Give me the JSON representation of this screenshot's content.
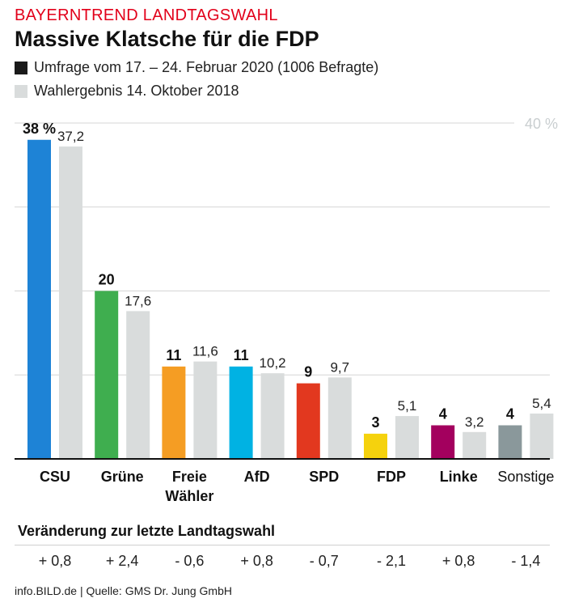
{
  "kicker": "BAYERNTREND LANDTAGSWAHL",
  "headline": "Massive Klatsche für die FDP",
  "legend": [
    {
      "label": "Umfrage vom 17. – 24. Februar 2020 (1006 Befragte)",
      "color": "#1a1a1a"
    },
    {
      "label": "Wahlergebnis 14. Oktober 2018",
      "color": "#d9dcdc"
    }
  ],
  "colors": {
    "previous": "#d9dcdc",
    "grid": "#d6d6d6",
    "axis": "#111111",
    "max_label": "#c9ced0"
  },
  "chart_data": {
    "type": "bar",
    "title": "Massive Klatsche für die FDP",
    "xlabel": "",
    "ylabel": "",
    "ylim": [
      0,
      40
    ],
    "grid": true,
    "max_label": "40 %",
    "categories": [
      "CSU",
      "Grüne",
      "Freie Wähler",
      "AfD",
      "SPD",
      "FDP",
      "Linke",
      "Sonstige"
    ],
    "category_lines": [
      [
        "CSU"
      ],
      [
        "Grüne"
      ],
      [
        "Freie",
        "Wähler"
      ],
      [
        "AfD"
      ],
      [
        "SPD"
      ],
      [
        "FDP"
      ],
      [
        "Linke"
      ],
      [
        "Sonstige"
      ]
    ],
    "category_bold": [
      true,
      true,
      true,
      true,
      true,
      true,
      true,
      false
    ],
    "series": [
      {
        "name": "Umfrage vom 17. – 24. Februar 2020 (1006 Befragte)",
        "values": [
          38,
          20,
          11,
          11,
          9,
          3,
          4,
          4
        ],
        "labels": [
          "38 %",
          "20",
          "11",
          "11",
          "9",
          "3",
          "4",
          "4"
        ],
        "colors": [
          "#1e83d6",
          "#3fae4f",
          "#f59d23",
          "#00b2e3",
          "#e2381f",
          "#f5d20d",
          "#a3005e",
          "#8a989b"
        ]
      },
      {
        "name": "Wahlergebnis 14. Oktober 2018",
        "values": [
          37.2,
          17.6,
          11.6,
          10.2,
          9.7,
          5.1,
          3.2,
          5.4
        ],
        "labels": [
          "37,2",
          "17,6",
          "11,6",
          "10,2",
          "9,7",
          "5,1",
          "3,2",
          "5,4"
        ]
      }
    ]
  },
  "change": {
    "title": "Veränderung zur letzte Landtagswahl",
    "values": [
      "+ 0,8",
      "+ 2,4",
      "- 0,6",
      "+ 0,8",
      "- 0,7",
      "- 2,1",
      "+ 0,8",
      "- 1,4"
    ]
  },
  "source": "info.BILD.de | Quelle: GMS Dr. Jung GmbH"
}
